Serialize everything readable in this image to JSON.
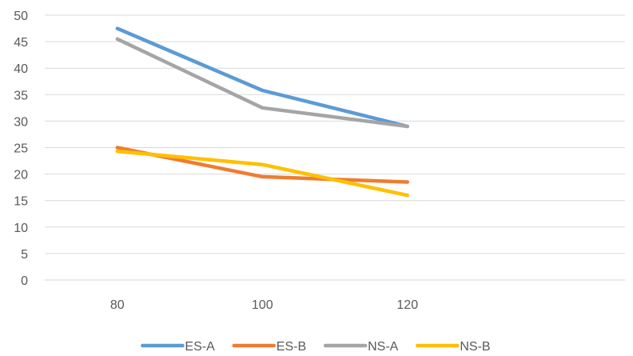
{
  "chart_data": {
    "type": "line",
    "x": [
      "80",
      "100",
      "120"
    ],
    "ylim": [
      0,
      50
    ],
    "ytick_step": 5,
    "grid": true,
    "legend_position": "bottom",
    "series": [
      {
        "name": "ES-A",
        "color": "#5B9BD5",
        "values": [
          47.5,
          35.8,
          29.0
        ]
      },
      {
        "name": "ES-B",
        "color": "#ED7D31",
        "values": [
          25.0,
          19.5,
          18.5
        ]
      },
      {
        "name": "NS-A",
        "color": "#A5A5A5",
        "values": [
          45.5,
          32.5,
          29.0
        ]
      },
      {
        "name": "NS-B",
        "color": "#FFC000",
        "values": [
          24.3,
          21.8,
          16.0
        ]
      }
    ]
  }
}
